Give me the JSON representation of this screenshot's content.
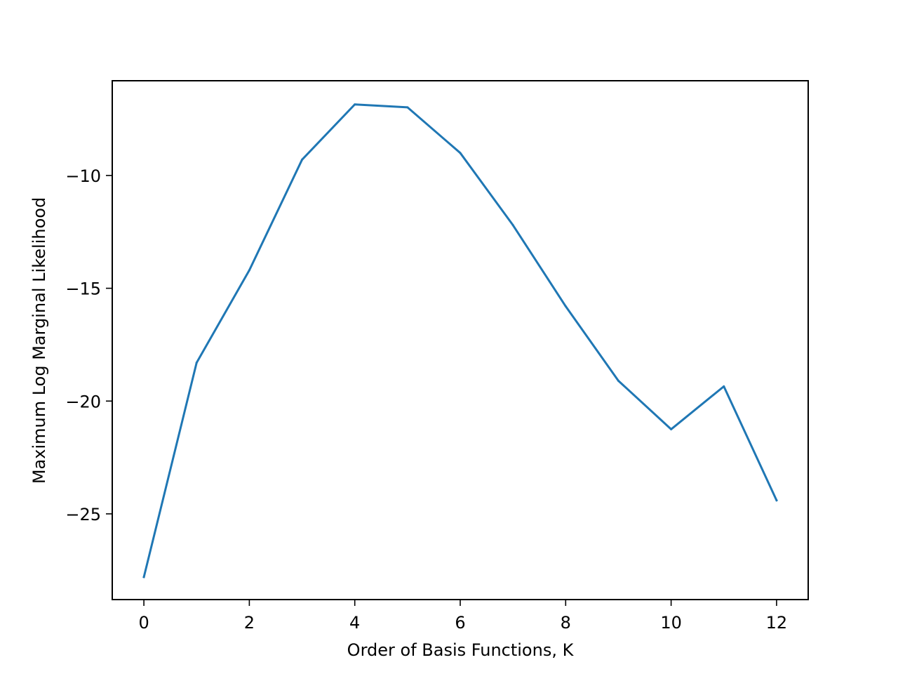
{
  "chart_data": {
    "type": "line",
    "title": "",
    "xlabel": "Order of Basis Functions, K",
    "ylabel": "Maximum Log Marginal Likelihood",
    "xlim": [
      -0.6,
      12.6
    ],
    "ylim": [
      -28.8,
      -5.8
    ],
    "xticks": [
      0,
      2,
      4,
      6,
      8,
      10,
      12
    ],
    "xtick_labels": [
      "0",
      "2",
      "4",
      "6",
      "8",
      "10",
      "12"
    ],
    "yticks": [
      -25,
      -20,
      -15,
      -10
    ],
    "ytick_labels": [
      "−25",
      "−20",
      "−15",
      "−10"
    ],
    "grid": false,
    "series": [
      {
        "color": "#1f77b4",
        "x": [
          0,
          1,
          2,
          3,
          4,
          5,
          6,
          7,
          8,
          9,
          10,
          11,
          12
        ],
        "y": [
          -27.8,
          -18.3,
          -14.2,
          -9.3,
          -6.85,
          -6.98,
          -9.0,
          -12.2,
          -15.8,
          -19.1,
          -21.25,
          -19.35,
          -24.4
        ]
      }
    ]
  }
}
